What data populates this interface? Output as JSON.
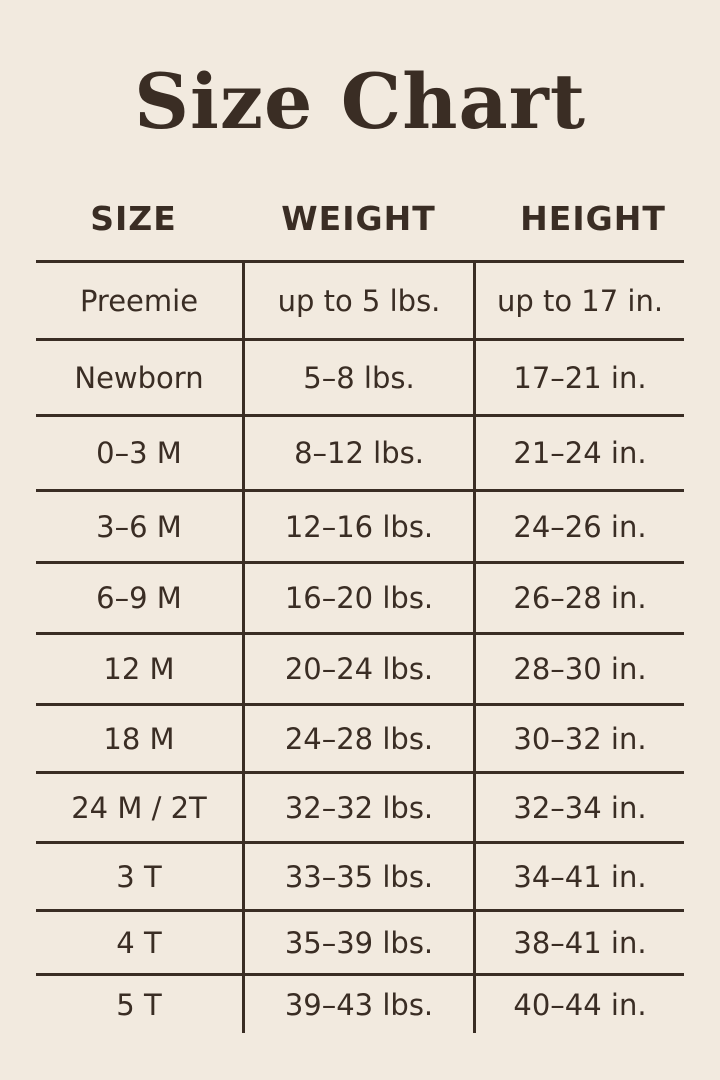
{
  "title": "Size Chart",
  "headers": [
    "SIZE",
    "WEIGHT",
    "HEIGHT"
  ],
  "rows": [
    [
      "Preemie",
      "up to 5 lbs.",
      "up to 17 in."
    ],
    [
      "Newborn",
      "5–8 lbs.",
      "17–21 in."
    ],
    [
      "0–3 M",
      "8–12 lbs.",
      "21–24 in."
    ],
    [
      "3–6 M",
      "12–16 lbs.",
      "24–26 in."
    ],
    [
      "6–9 M",
      "16–20 lbs.",
      "26–28 in."
    ],
    [
      "12 M",
      "20–24 lbs.",
      "28–30 in."
    ],
    [
      "18 M",
      "24–28 lbs.",
      "30–32 in."
    ],
    [
      "24 M / 2T",
      "32–32 lbs.",
      "32–34 in."
    ],
    [
      "3 T",
      "33–35 lbs.",
      "34–41 in."
    ],
    [
      "4 T",
      "35–39 lbs.",
      "38–41 in."
    ],
    [
      "5 T",
      "39–43 lbs.",
      "40–44 in."
    ]
  ],
  "colors": {
    "background": "#f2eadf",
    "text": "#3a2d24"
  }
}
